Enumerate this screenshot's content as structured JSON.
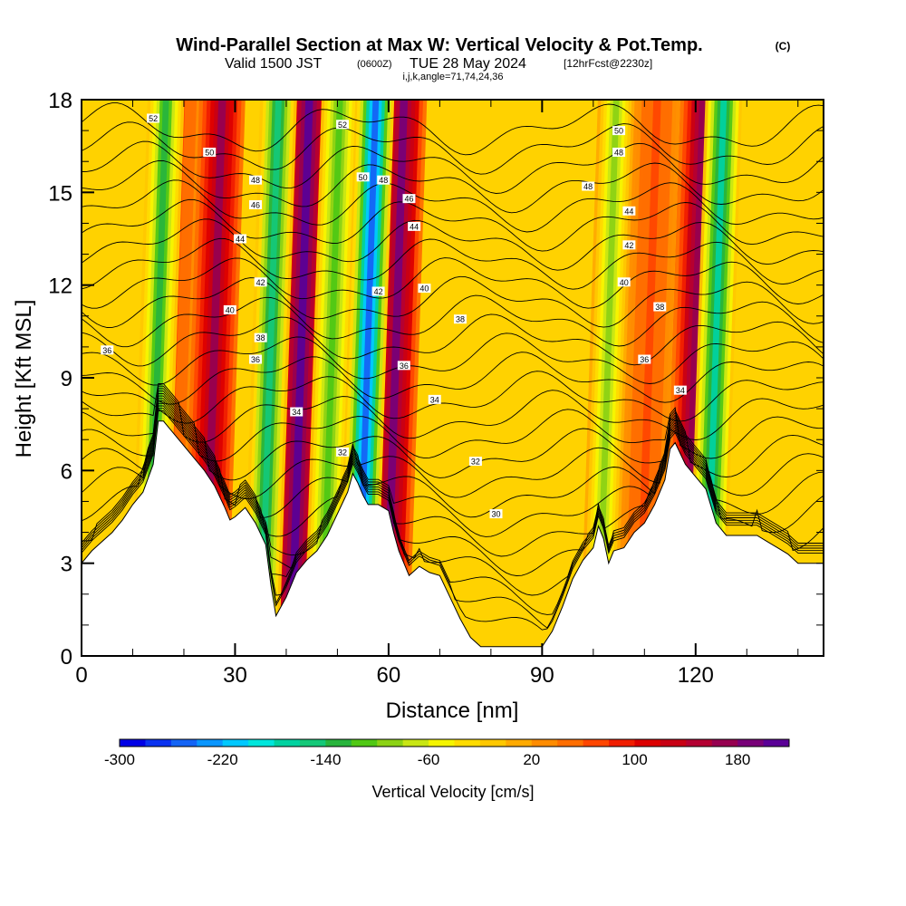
{
  "header": {
    "title": "Wind-Parallel Section at Max W: Vertical Velocity & Pot.Temp.",
    "copyright": "(C)",
    "valid_prefix": "Valid 1500 JST",
    "valid_utc": "(0600Z)",
    "valid_date": "TUE 28 May 2024",
    "forecast": "[12hrFcst@2230z]",
    "params": "i,j,k,angle=71,74,24,36"
  },
  "chart_data": {
    "type": "heatmap",
    "title": "Wind-Parallel Section at Max W: Vertical Velocity & Pot.Temp.",
    "xlabel": "Distance [nm]",
    "ylabel": "Height [Kft MSL]",
    "xlim": [
      0,
      145
    ],
    "ylim": [
      0,
      18
    ],
    "x_ticks": [
      0,
      30,
      60,
      90,
      120
    ],
    "y_ticks": [
      0,
      3,
      6,
      9,
      12,
      15,
      18
    ],
    "x_tick_labels": [
      "0",
      "30",
      "60",
      "90",
      "120"
    ],
    "y_tick_labels": [
      "0",
      "3",
      "6",
      "9",
      "12",
      "15",
      "18"
    ],
    "colorbar": {
      "label": "Vertical Velocity [cm/s]",
      "min": -300,
      "max": 220,
      "step": 20,
      "tick_labels": [
        "-300",
        "-220",
        "-140",
        "-60",
        "20",
        "100",
        "180"
      ],
      "tick_values": [
        -300,
        -220,
        -140,
        -60,
        20,
        100,
        180
      ],
      "colors": [
        "#0000e6",
        "#0a32f0",
        "#1464f5",
        "#0a96ff",
        "#00c8ff",
        "#00e6dc",
        "#00d2a0",
        "#14c878",
        "#28b43c",
        "#50c814",
        "#8cd214",
        "#c8e614",
        "#f5f500",
        "#ffdc00",
        "#ffc800",
        "#ffaa00",
        "#ff8c00",
        "#ff6e00",
        "#ff4600",
        "#f01e00",
        "#dc0000",
        "#c80014",
        "#b40032",
        "#960050",
        "#780078",
        "#5a0096"
      ]
    },
    "updraft_bands": [
      {
        "x": 16,
        "w": 60
      },
      {
        "x": 24,
        "w": 160
      },
      {
        "x": 41,
        "w": 200
      },
      {
        "x": 59.5,
        "w": 180
      },
      {
        "x": 118,
        "w": 170
      },
      {
        "x": 109,
        "w": 60
      }
    ],
    "downdraft_bands": [
      {
        "x": 13,
        "w": -130
      },
      {
        "x": 35,
        "w": -150
      },
      {
        "x": 47,
        "w": -120
      },
      {
        "x": 54,
        "w": -260
      },
      {
        "x": 101,
        "w": -100
      },
      {
        "x": 122,
        "w": -170
      }
    ],
    "terrain": {
      "x": [
        0,
        2,
        4,
        6,
        8,
        10,
        12,
        14,
        15,
        16,
        18,
        20,
        22,
        24,
        26,
        28,
        29,
        30,
        32,
        34,
        36,
        37,
        38,
        39,
        40,
        42,
        44,
        46,
        48,
        50,
        52,
        53,
        54,
        55,
        56,
        58,
        60,
        61,
        62,
        64,
        66,
        68,
        70,
        72,
        74,
        76,
        78,
        80,
        82,
        84,
        86,
        88,
        90,
        92,
        94,
        96,
        98,
        100,
        101,
        102,
        103,
        104,
        106,
        108,
        110,
        112,
        114,
        115,
        116,
        118,
        120,
        122,
        124,
        126,
        128,
        130,
        132,
        134,
        136,
        138,
        140,
        145
      ],
      "y": [
        3,
        3.4,
        3.7,
        4.0,
        4.4,
        4.9,
        5.3,
        6.2,
        7.6,
        7.6,
        7.2,
        6.8,
        6.4,
        6.0,
        5.5,
        4.8,
        4.4,
        4.5,
        4.8,
        4.3,
        3.6,
        2.3,
        1.3,
        1.6,
        1.9,
        2.7,
        3.1,
        3.4,
        3.9,
        4.6,
        5.3,
        5.9,
        5.6,
        5.2,
        4.9,
        4.9,
        4.7,
        4.0,
        3.4,
        2.6,
        2.9,
        2.7,
        2.6,
        1.9,
        1.2,
        0.6,
        0.3,
        0.3,
        0.3,
        0.3,
        0.3,
        0.3,
        0.3,
        0.8,
        1.6,
        2.5,
        3.1,
        3.5,
        4.2,
        3.8,
        3.0,
        3.4,
        3.5,
        4.0,
        4.3,
        4.9,
        5.7,
        6.7,
        6.9,
        6.2,
        5.8,
        5.4,
        4.3,
        3.9,
        3.9,
        3.9,
        3.9,
        3.7,
        3.5,
        3.3,
        3.0,
        3.0
      ]
    },
    "theta_contours": {
      "levels": [
        30,
        31,
        32,
        33,
        34,
        35,
        36,
        37,
        38,
        39,
        40,
        41,
        42,
        43,
        44,
        45,
        46,
        47,
        48,
        49,
        50,
        51,
        52,
        53,
        54,
        55,
        56
      ],
      "labels": [
        {
          "text": "52",
          "x": 14,
          "y": 17.4
        },
        {
          "text": "50",
          "x": 25,
          "y": 16.3
        },
        {
          "text": "48",
          "x": 34,
          "y": 15.4
        },
        {
          "text": "46",
          "x": 34,
          "y": 14.6
        },
        {
          "text": "44",
          "x": 31,
          "y": 13.5
        },
        {
          "text": "42",
          "x": 35,
          "y": 12.1
        },
        {
          "text": "40",
          "x": 29,
          "y": 11.2
        },
        {
          "text": "38",
          "x": 35,
          "y": 10.3
        },
        {
          "text": "36",
          "x": 5,
          "y": 9.9
        },
        {
          "text": "36",
          "x": 34,
          "y": 9.6
        },
        {
          "text": "34",
          "x": 42,
          "y": 7.9
        },
        {
          "text": "32",
          "x": 51,
          "y": 6.6
        },
        {
          "text": "52",
          "x": 51,
          "y": 17.2
        },
        {
          "text": "50",
          "x": 55,
          "y": 15.5
        },
        {
          "text": "48",
          "x": 59,
          "y": 15.4
        },
        {
          "text": "46",
          "x": 64,
          "y": 14.8
        },
        {
          "text": "44",
          "x": 65,
          "y": 13.9
        },
        {
          "text": "42",
          "x": 58,
          "y": 11.8
        },
        {
          "text": "40",
          "x": 67,
          "y": 11.9
        },
        {
          "text": "38",
          "x": 74,
          "y": 10.9
        },
        {
          "text": "36",
          "x": 63,
          "y": 9.4
        },
        {
          "text": "34",
          "x": 69,
          "y": 8.3
        },
        {
          "text": "32",
          "x": 77,
          "y": 6.3
        },
        {
          "text": "30",
          "x": 81,
          "y": 4.6
        },
        {
          "text": "50",
          "x": 105,
          "y": 17.0
        },
        {
          "text": "48",
          "x": 105,
          "y": 16.3
        },
        {
          "text": "48",
          "x": 99,
          "y": 15.2
        },
        {
          "text": "44",
          "x": 107,
          "y": 14.4
        },
        {
          "text": "42",
          "x": 107,
          "y": 13.3
        },
        {
          "text": "40",
          "x": 106,
          "y": 12.1
        },
        {
          "text": "38",
          "x": 113,
          "y": 11.3
        },
        {
          "text": "36",
          "x": 110,
          "y": 9.6
        },
        {
          "text": "34",
          "x": 117,
          "y": 8.6
        }
      ]
    }
  }
}
